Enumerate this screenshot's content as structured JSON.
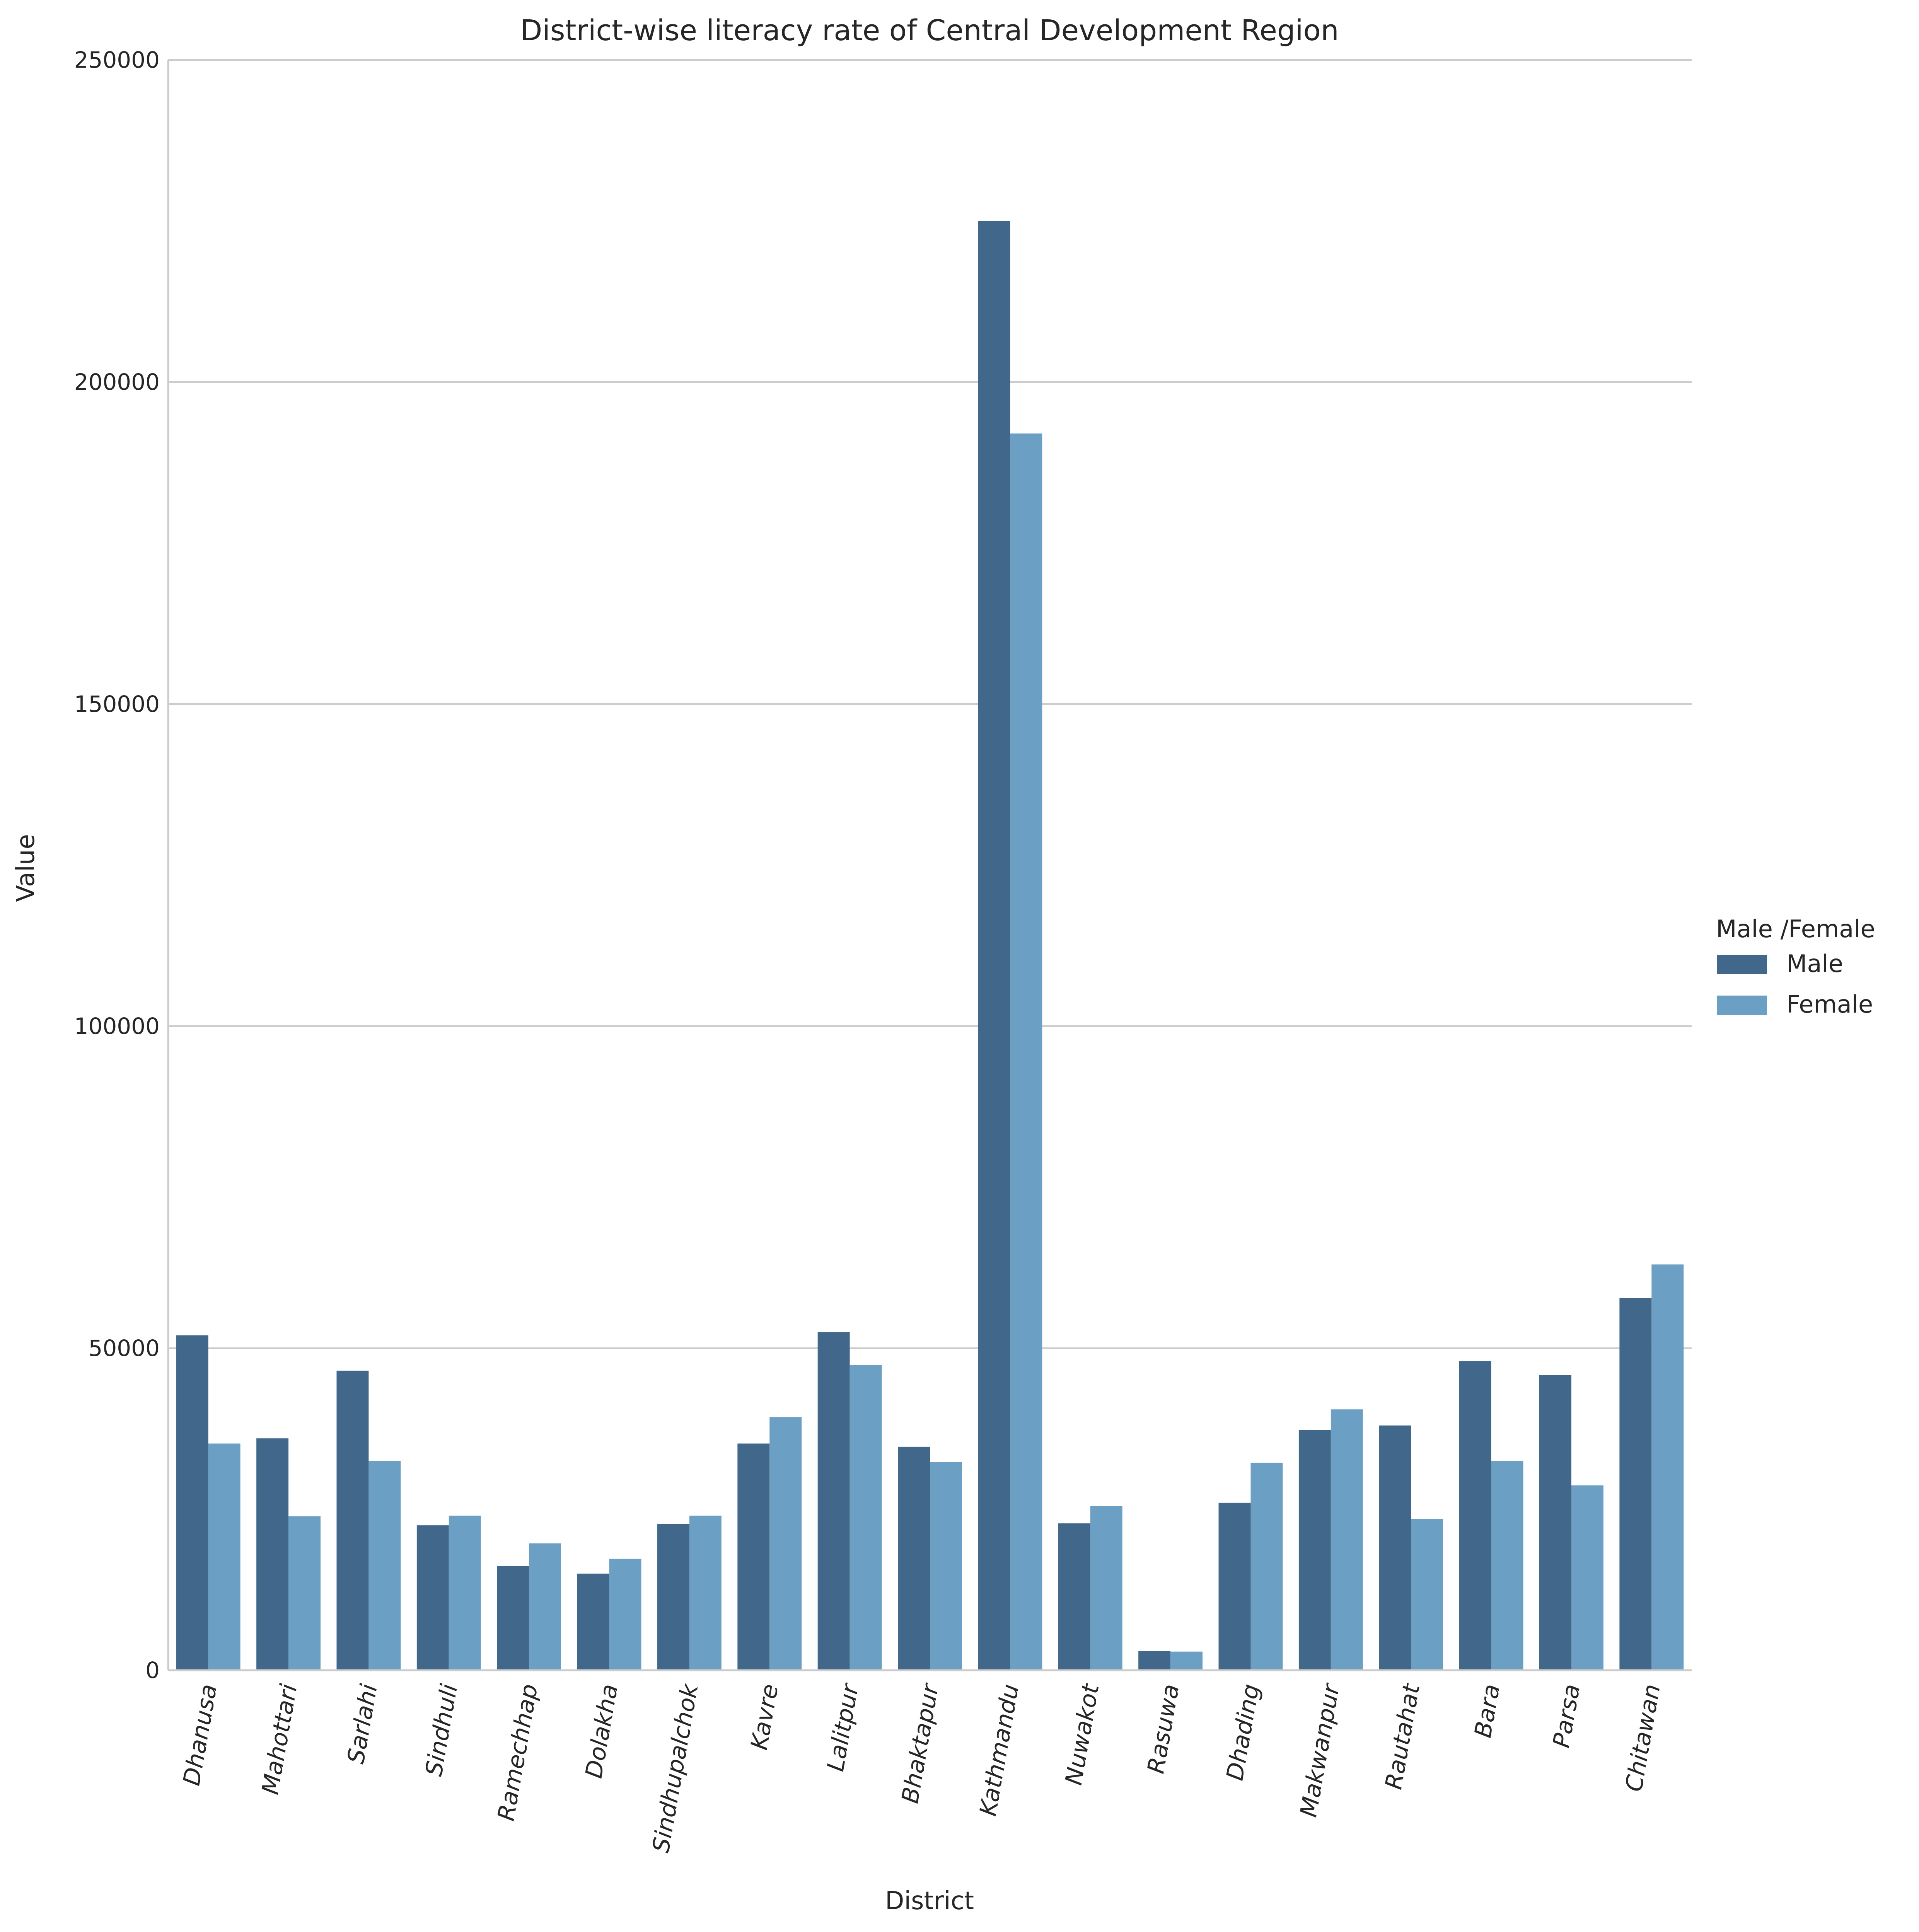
{
  "chart_data": {
    "type": "bar",
    "title": "District-wise literacy rate of Central Development Region",
    "xlabel": "District",
    "ylabel": "Value",
    "ylim": [
      0,
      250000
    ],
    "yticks": [
      0,
      50000,
      100000,
      150000,
      200000,
      250000
    ],
    "grid": "horizontal",
    "legend_placement": "right",
    "legend_title": "Male /Female",
    "categories": [
      "Dhanusa",
      "Mahottari",
      "Sarlahi",
      "Sindhuli",
      "Ramechhap",
      "Dolakha",
      "Sindhupalchok",
      "Kavre",
      "Lalitpur",
      "Bhaktapur",
      "Kathmandu",
      "Nuwakot",
      "Rasuwa",
      "Dhading",
      "Makwanpur",
      "Rautahat",
      "Bara",
      "Parsa",
      "Chitawan"
    ],
    "series": [
      {
        "name": "Male",
        "color": "#41688a",
        "values": [
          52000,
          36000,
          46500,
          22500,
          16200,
          15000,
          22700,
          35200,
          52500,
          34700,
          225000,
          22800,
          3000,
          26000,
          37300,
          38000,
          48000,
          45800,
          57800
        ]
      },
      {
        "name": "Female",
        "color": "#6c9fc4",
        "values": [
          35200,
          23900,
          32500,
          24000,
          19700,
          17300,
          24000,
          39300,
          47400,
          32300,
          192000,
          25500,
          2900,
          32200,
          40500,
          23500,
          32500,
          28700,
          63000
        ]
      }
    ]
  }
}
